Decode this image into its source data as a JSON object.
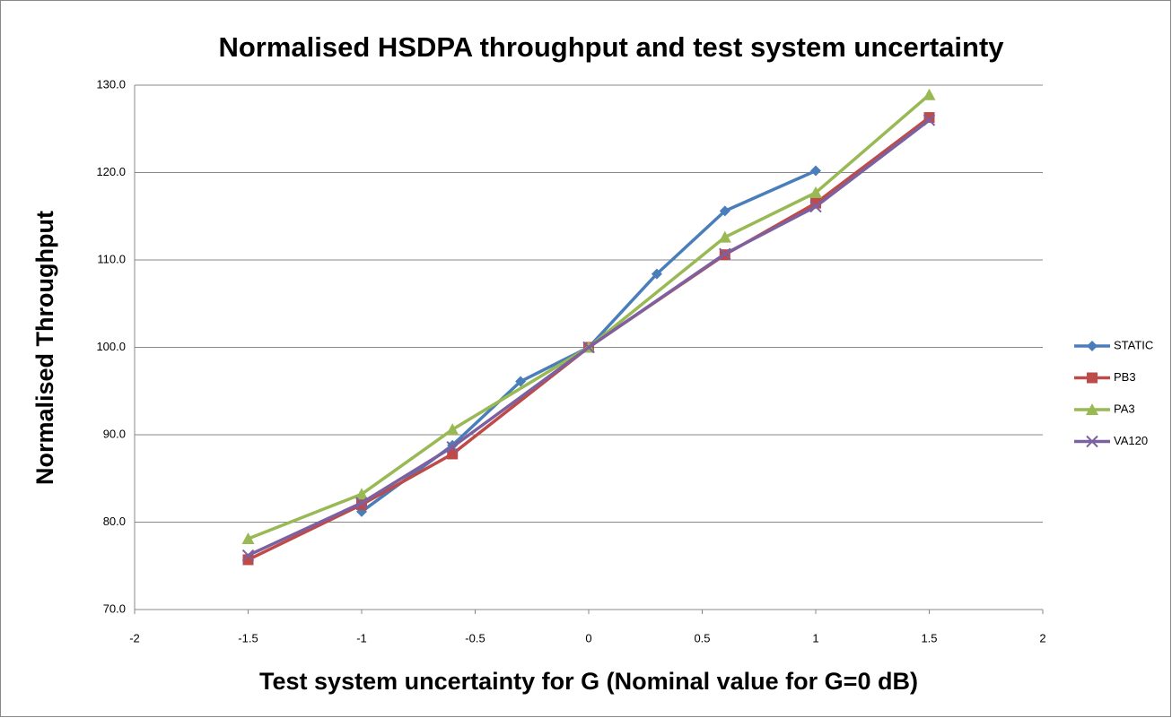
{
  "chart_data": {
    "type": "line",
    "title": "Normalised HSDPA throughput and test system uncertainty",
    "x_label": "Test system uncertainty for G (Nominal value for G=0 dB)",
    "y_label": "Normalised Throughput",
    "xlim": [
      -2,
      2
    ],
    "xticks": [
      -2,
      -1.5,
      -1,
      -0.5,
      0,
      0.5,
      1,
      1.5,
      2
    ],
    "ylim": [
      70,
      130
    ],
    "yticks": [
      {
        "value": 70,
        "label": "70.0"
      },
      {
        "value": 80,
        "label": "80.0"
      },
      {
        "value": 90,
        "label": "90.0"
      },
      {
        "value": 100,
        "label": "100.0"
      },
      {
        "value": 110,
        "label": "110.0"
      },
      {
        "value": 120,
        "label": "120.0"
      },
      {
        "value": 130,
        "label": "130.0"
      }
    ],
    "grid": true,
    "legend": "right",
    "series": [
      {
        "name": "STATIC",
        "color": "#4a7ebb",
        "marker": "diamond",
        "x": [
          -1,
          -0.6,
          -0.3,
          0,
          0.3,
          0.6,
          1
        ],
        "values": [
          81.2,
          88.8,
          96.1,
          100,
          108.4,
          115.6,
          120.2
        ]
      },
      {
        "name": "PB3",
        "color": "#be4b48",
        "marker": "square",
        "x": [
          -1.5,
          -1,
          -0.6,
          0,
          0.6,
          1,
          1.5
        ],
        "values": [
          75.7,
          82.0,
          87.8,
          100,
          110.6,
          116.5,
          126.3
        ]
      },
      {
        "name": "PA3",
        "color": "#98b954",
        "marker": "triangle",
        "x": [
          -1.5,
          -1,
          -0.6,
          0,
          0.6,
          1,
          1.5
        ],
        "values": [
          78.1,
          83.2,
          90.6,
          100,
          112.6,
          117.7,
          128.9
        ]
      },
      {
        "name": "VA120",
        "color": "#7d60a0",
        "marker": "x",
        "x": [
          -1.5,
          -1,
          -0.6,
          0,
          0.6,
          1,
          1.5
        ],
        "values": [
          76.2,
          82.2,
          88.6,
          100,
          110.7,
          116.1,
          126.0
        ]
      }
    ]
  }
}
